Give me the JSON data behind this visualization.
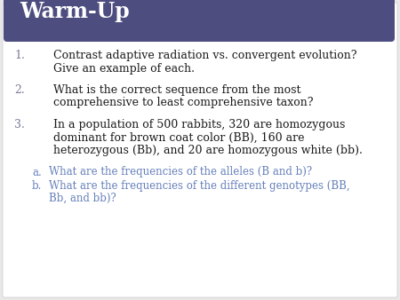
{
  "title": "Warm-Up",
  "title_color": "#ffffff",
  "header_bg_color": "#4d4d80",
  "slide_bg_color": "#ffffff",
  "outer_bg_color": "#e8e8e8",
  "body_text_color": "#1a1a1a",
  "number_color": "#7a7a9a",
  "sub_text_color": "#6680bb",
  "items": [
    {
      "number": "1.",
      "lines": [
        "Contrast adaptive radiation vs. convergent evolution?",
        "Give an example of each."
      ],
      "color": "#1a1a1a"
    },
    {
      "number": "2.",
      "lines": [
        "What is the correct sequence from the most",
        "comprehensive to least comprehensive taxon?"
      ],
      "color": "#1a1a1a"
    },
    {
      "number": "3.",
      "lines": [
        "In a population of 500 rabbits, 320 are homozygous",
        "dominant for brown coat color (BB), 160 are",
        "heterozygous (Bb), and 20 are homozygous white (bb)."
      ],
      "color": "#1a1a1a"
    }
  ],
  "sub_items": [
    {
      "label": "a.",
      "lines": [
        "What are the frequencies of the alleles (B and b)?"
      ]
    },
    {
      "label": "b.",
      "lines": [
        "What are the frequencies of the different genotypes (BB,",
        "Bb, and bb)?"
      ]
    }
  ],
  "title_fontsize": 17,
  "body_fontsize": 9.0,
  "sub_fontsize": 8.5
}
